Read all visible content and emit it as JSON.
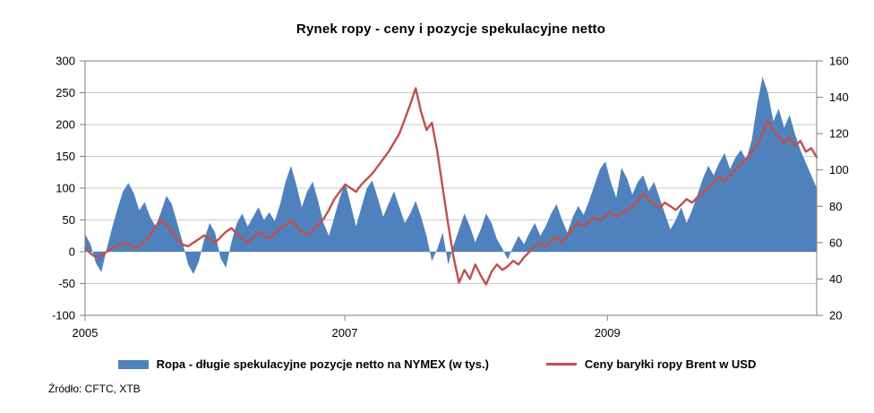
{
  "footer": {
    "source": "Źródło: CFTC, XTB"
  },
  "legend": {
    "items": [
      {
        "label": "Ropa - długie spekulacyjne pozycje netto na NYMEX (w tys.)",
        "marker": "area-swatch",
        "color": "#4f81bd"
      },
      {
        "label": "Ceny baryłki ropy Brent w USD",
        "marker": "line-swatch",
        "color": "#c0504d"
      }
    ]
  },
  "chart_data": {
    "type": "area+line",
    "title": "Rynek ropy - ceny i pozycje spekulacyjne netto",
    "grid_color": "#c9c9c9",
    "axis_color": "#7f7f7f",
    "legend_position": "bottom",
    "grid": "horizontal-only",
    "left_axis": {
      "min": -100,
      "max": 300,
      "tick_step": 50,
      "ticks": [
        300,
        250,
        200,
        150,
        100,
        50,
        0,
        -50,
        -100
      ],
      "series_name": "Ropa - długie spekulacyjne pozycje netto na NYMEX (w tys.)"
    },
    "right_axis": {
      "min": 20,
      "max": 160,
      "tick_step": 20,
      "ticks": [
        160,
        140,
        120,
        100,
        80,
        60,
        40,
        20
      ],
      "series_name": "Ceny baryłki ropy Brent w USD"
    },
    "x_ticks": [
      {
        "label": "2005",
        "f": 0.0
      },
      {
        "label": "2007",
        "f": 0.355
      },
      {
        "label": "2009",
        "f": 0.714
      }
    ],
    "series": [
      {
        "name": "Ropa - długie spekulacyjne pozycje netto na NYMEX (w tys.)",
        "type": "area",
        "axis": "left",
        "color": "#4f81bd",
        "baseline": 0,
        "values": [
          28,
          12,
          -18,
          -32,
          5,
          38,
          68,
          95,
          108,
          92,
          65,
          78,
          55,
          40,
          62,
          88,
          75,
          45,
          15,
          -20,
          -35,
          -15,
          20,
          45,
          30,
          -10,
          -25,
          15,
          45,
          60,
          40,
          55,
          70,
          50,
          62,
          48,
          75,
          110,
          135,
          105,
          70,
          95,
          110,
          80,
          45,
          25,
          55,
          85,
          108,
          75,
          40,
          70,
          100,
          112,
          85,
          55,
          75,
          95,
          70,
          45,
          60,
          80,
          55,
          25,
          -15,
          5,
          30,
          -20,
          10,
          35,
          60,
          40,
          15,
          35,
          60,
          45,
          20,
          5,
          -12,
          8,
          25,
          12,
          30,
          45,
          25,
          40,
          60,
          75,
          50,
          30,
          55,
          72,
          58,
          80,
          105,
          130,
          142,
          110,
          85,
          132,
          115,
          90,
          110,
          120,
          95,
          110,
          85,
          60,
          35,
          50,
          70,
          45,
          65,
          90,
          115,
          135,
          120,
          140,
          155,
          130,
          148,
          160,
          145,
          175,
          230,
          275,
          250,
          205,
          225,
          195,
          215,
          185,
          160,
          140,
          120,
          100
        ]
      },
      {
        "name": "Ceny baryłki ropy Brent w USD",
        "type": "line",
        "axis": "right",
        "color": "#c0504d",
        "values": [
          57,
          54,
          52,
          53,
          55,
          57,
          58,
          60,
          59,
          57,
          58,
          61,
          64,
          69,
          72,
          70,
          66,
          62,
          59,
          58,
          60,
          62,
          64,
          62,
          60,
          63,
          66,
          68,
          65,
          62,
          60,
          63,
          66,
          64,
          62,
          65,
          68,
          70,
          72,
          69,
          66,
          64,
          67,
          70,
          73,
          78,
          84,
          88,
          92,
          90,
          88,
          92,
          95,
          98,
          102,
          106,
          110,
          115,
          120,
          128,
          136,
          145,
          132,
          122,
          126,
          110,
          90,
          70,
          52,
          38,
          45,
          40,
          48,
          42,
          37,
          44,
          48,
          45,
          47,
          50,
          48,
          52,
          55,
          58,
          60,
          58,
          61,
          63,
          60,
          64,
          68,
          71,
          69,
          72,
          74,
          72,
          75,
          77,
          74,
          76,
          78,
          80,
          83,
          87,
          84,
          81,
          79,
          82,
          80,
          78,
          81,
          84,
          82,
          85,
          88,
          90,
          93,
          96,
          94,
          97,
          100,
          103,
          106,
          110,
          114,
          120,
          127,
          122,
          118,
          115,
          118,
          113,
          116,
          110,
          112,
          107
        ]
      }
    ]
  }
}
